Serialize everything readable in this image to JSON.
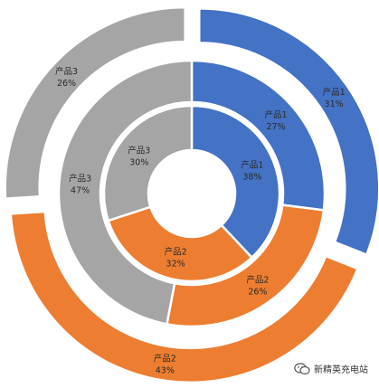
{
  "chart_data": {
    "type": "donut",
    "rings": [
      {
        "ring": "inner",
        "slices": [
          {
            "category": "产品1",
            "value": 38,
            "label": "38%"
          },
          {
            "category": "产品2",
            "value": 32,
            "label": "32%"
          },
          {
            "category": "产品3",
            "value": 30,
            "label": "30%"
          }
        ]
      },
      {
        "ring": "middle",
        "slices": [
          {
            "category": "产品1",
            "value": 27,
            "label": "27%"
          },
          {
            "category": "产品2",
            "value": 26,
            "label": "26%"
          },
          {
            "category": "产品3",
            "value": 47,
            "label": "47%"
          }
        ]
      },
      {
        "ring": "outer",
        "slices": [
          {
            "category": "产品1",
            "value": 31,
            "label": "31%"
          },
          {
            "category": "产品2",
            "value": 43,
            "label": "43%"
          },
          {
            "category": "产品3",
            "value": 26,
            "label": "26%"
          }
        ]
      }
    ],
    "colors": {
      "产品1": "#4472C4",
      "产品2": "#ED7D31",
      "产品3": "#A5A5A5"
    }
  },
  "watermark": {
    "text": "新精英充电站",
    "icon": "wechat-icon"
  }
}
